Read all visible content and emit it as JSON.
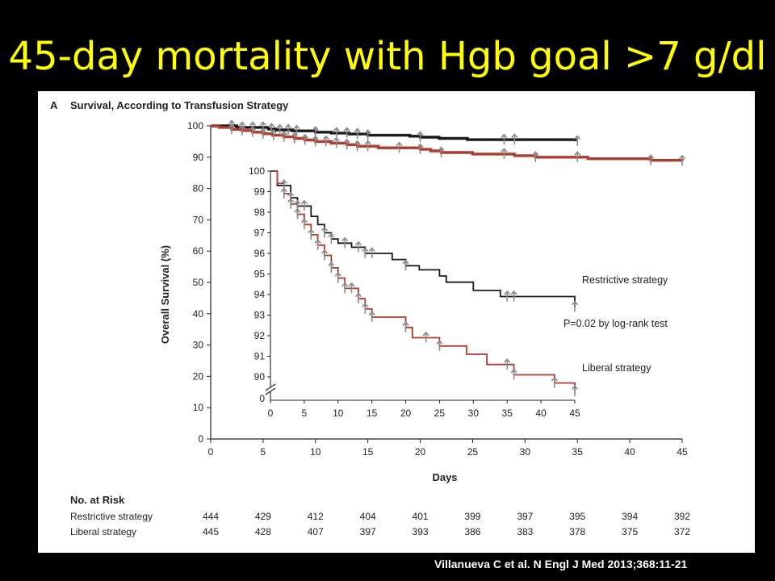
{
  "slide": {
    "title": "45-day mortality with Hgb goal >7 g/dl",
    "citation": "Villanueva C et al. N Engl J Med 2013;368:11-21"
  },
  "colors": {
    "restrictive": "#1a1a1a",
    "liberal": "#b03a2e",
    "censor": "#8a8a8a",
    "title": "#ffff00"
  },
  "chart_data": {
    "type": "line",
    "panel_label": "A",
    "title": "Survival, According to Transfusion Strategy",
    "xlabel": "Days",
    "ylabel": "Overall Survival (%)",
    "xlim": [
      0,
      45
    ],
    "ylim": [
      0,
      100
    ],
    "x_ticks": [
      "0",
      "5",
      "10",
      "15",
      "20",
      "25",
      "30",
      "35",
      "40",
      "45"
    ],
    "y_ticks": [
      "0",
      "10",
      "20",
      "30",
      "40",
      "50",
      "60",
      "70",
      "80",
      "90",
      "100"
    ],
    "series": [
      {
        "name": "Restrictive strategy",
        "x": [
          0,
          2.5,
          5.5,
          6.2,
          7.8,
          10,
          11.5,
          13.2,
          15,
          19,
          20,
          21.8,
          24.5,
          27.5,
          33.5,
          34.8
        ],
        "y": [
          100,
          99.5,
          99.0,
          98.7,
          98.4,
          98.0,
          97.7,
          97.4,
          97.0,
          96.7,
          96.4,
          96.0,
          95.6,
          95.6,
          95.6,
          95.1
        ],
        "censor_x": [
          2,
          3,
          4,
          5,
          5.8,
          6.6,
          7.4,
          8.2,
          10,
          12,
          13,
          14,
          15,
          20,
          28,
          29,
          35
        ]
      },
      {
        "name": "Liberal strategy",
        "x": [
          0,
          0.8,
          2,
          3,
          4,
          5,
          5.9,
          7,
          8,
          9,
          10,
          11.5,
          13,
          14,
          16,
          20,
          21,
          22,
          25,
          29,
          31,
          36,
          42,
          45
        ],
        "y": [
          100,
          99.5,
          98.9,
          98.5,
          98.0,
          97.5,
          97.0,
          96.5,
          96.0,
          95.5,
          95.0,
          94.5,
          94.0,
          93.5,
          93.0,
          92.5,
          92.0,
          91.5,
          91.0,
          90.5,
          90.0,
          89.5,
          89.0,
          88.8
        ],
        "censor_x": [
          2,
          3,
          4,
          5,
          6,
          7,
          8,
          9,
          10,
          11,
          12,
          13,
          14,
          15,
          18,
          20,
          22,
          28,
          31,
          35,
          42,
          45
        ]
      }
    ],
    "inset": {
      "xlim": [
        0,
        45
      ],
      "ylim": [
        90,
        100
      ],
      "x_ticks": [
        "0",
        "5",
        "10",
        "15",
        "20",
        "25",
        "30",
        "35",
        "40",
        "45"
      ],
      "y_ticks": [
        "90",
        "91",
        "92",
        "93",
        "94",
        "95",
        "96",
        "97",
        "98",
        "99",
        "100"
      ],
      "axis_break_label": "0",
      "series": [
        {
          "name": "Restrictive strategy",
          "x": [
            0,
            1,
            3,
            4,
            6,
            7,
            8,
            9,
            10,
            12,
            14,
            18,
            20,
            22,
            25,
            26,
            30,
            34,
            45
          ],
          "y": [
            100,
            99.3,
            98.7,
            98.3,
            97.8,
            97.4,
            97.0,
            96.7,
            96.5,
            96.3,
            96.0,
            95.7,
            95.4,
            95.2,
            94.9,
            94.6,
            94.2,
            93.9,
            93.4
          ],
          "censor_x": [
            2,
            3,
            4,
            5,
            8,
            9,
            11,
            13,
            14,
            15,
            20,
            35,
            36,
            45
          ]
        },
        {
          "name": "Liberal strategy",
          "x": [
            0,
            1,
            2,
            3,
            4,
            5,
            6,
            7,
            8,
            9,
            10,
            11,
            13,
            14,
            15,
            20,
            21,
            25,
            29,
            32,
            36,
            42,
            45
          ],
          "y": [
            100,
            99.4,
            98.9,
            98.4,
            97.9,
            97.4,
            96.9,
            96.4,
            95.9,
            95.3,
            94.8,
            94.3,
            93.8,
            93.3,
            92.9,
            92.4,
            91.9,
            91.5,
            91.1,
            90.6,
            90.1,
            89.7,
            89.3
          ],
          "censor_x": [
            2,
            3,
            4,
            5,
            6,
            7,
            8,
            9,
            10,
            11,
            12,
            13,
            14,
            15,
            20,
            23,
            25,
            35,
            36,
            42,
            45
          ]
        }
      ],
      "labels": {
        "restrictive": "Restrictive strategy",
        "pvalue": "P=0.02 by log-rank test",
        "liberal": "Liberal strategy"
      }
    },
    "risk_table": {
      "heading": "No. at Risk",
      "rows": [
        {
          "label": "Restrictive strategy",
          "values": [
            "444",
            "429",
            "412",
            "404",
            "401",
            "399",
            "397",
            "395",
            "394",
            "392"
          ]
        },
        {
          "label": "Liberal strategy",
          "values": [
            "445",
            "428",
            "407",
            "397",
            "393",
            "386",
            "383",
            "378",
            "375",
            "372"
          ]
        }
      ]
    }
  }
}
